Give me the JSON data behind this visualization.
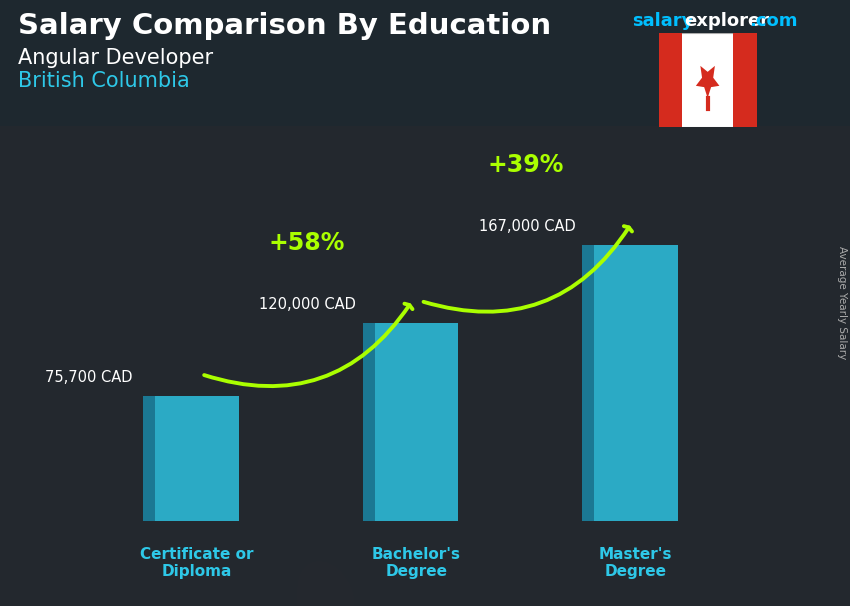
{
  "title": "Salary Comparison By Education",
  "subtitle1": "Angular Developer",
  "subtitle2": "British Columbia",
  "watermark_salary": "salary",
  "watermark_explorer": "explorer",
  "watermark_dotcom": ".com",
  "ylabel_text": "Average Yearly Salary",
  "categories": [
    "Certificate or\nDiploma",
    "Bachelor's\nDegree",
    "Master's\nDegree"
  ],
  "values": [
    75700,
    120000,
    167000
  ],
  "value_labels": [
    "75,700 CAD",
    "120,000 CAD",
    "167,000 CAD"
  ],
  "pct_labels": [
    "+58%",
    "+39%"
  ],
  "bar_front_color": "#2ec8e8",
  "bar_side_color": "#1a8aaa",
  "bar_top_color": "#5de0f5",
  "bar_alpha": 0.82,
  "bg_color": "#3a4a52",
  "title_color": "#ffffff",
  "subtitle1_color": "#ffffff",
  "subtitle2_color": "#2ec8e8",
  "category_color": "#2ec8e8",
  "value_label_color": "#ffffff",
  "pct_color": "#aaff00",
  "arrow_color": "#aaff00",
  "watermark_salary_color": "#00bfff",
  "watermark_explorer_color": "#ffffff",
  "watermark_dotcom_color": "#00bfff",
  "rotated_label_color": "#aaaaaa",
  "ylim_max": 220000,
  "bar_width": 0.38,
  "fig_bg": "#3a4a52"
}
